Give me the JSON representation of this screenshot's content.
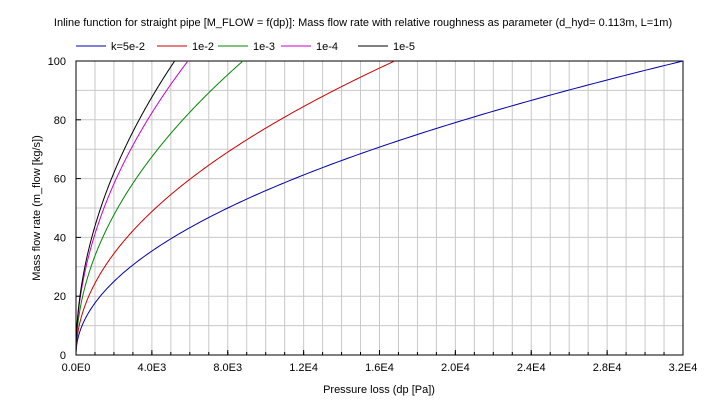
{
  "chart_data": {
    "type": "line",
    "title": "Inline function for straight pipe [M_FLOW = f(dp)]: Mass flow rate with relative roughness as parameter (d_hyd= 0.113m, L=1m)",
    "xlabel": "Pressure loss (dp [Pa])",
    "ylabel": "Mass flow rate (m_flow [kg/s])",
    "xlim": [
      0,
      32000
    ],
    "ylim": [
      0,
      100
    ],
    "x_ticks": [
      0,
      4000,
      8000,
      12000,
      16000,
      20000,
      24000,
      28000,
      32000
    ],
    "x_tick_labels": [
      "0.0E0",
      "4.0E3",
      "8.0E3",
      "1.2E4",
      "1.6E4",
      "2.0E4",
      "2.4E4",
      "2.8E4",
      "3.2E4"
    ],
    "y_ticks": [
      0,
      20,
      40,
      60,
      80,
      100
    ],
    "y_tick_labels": [
      "0",
      "20",
      "40",
      "60",
      "80",
      "100"
    ],
    "grid": true,
    "legend_position": "top",
    "series": [
      {
        "name": "k=5e-2",
        "color": "#0000aa",
        "x_at_y100": 32000
      },
      {
        "name": "1e-2",
        "color": "#cc0000",
        "x_at_y100": 16800
      },
      {
        "name": "1e-3",
        "color": "#008800",
        "x_at_y100": 8800
      },
      {
        "name": "1e-4",
        "color": "#cc00cc",
        "x_at_y100": 5900
      },
      {
        "name": "1e-5",
        "color": "#000000",
        "x_at_y100": 5200
      }
    ]
  }
}
